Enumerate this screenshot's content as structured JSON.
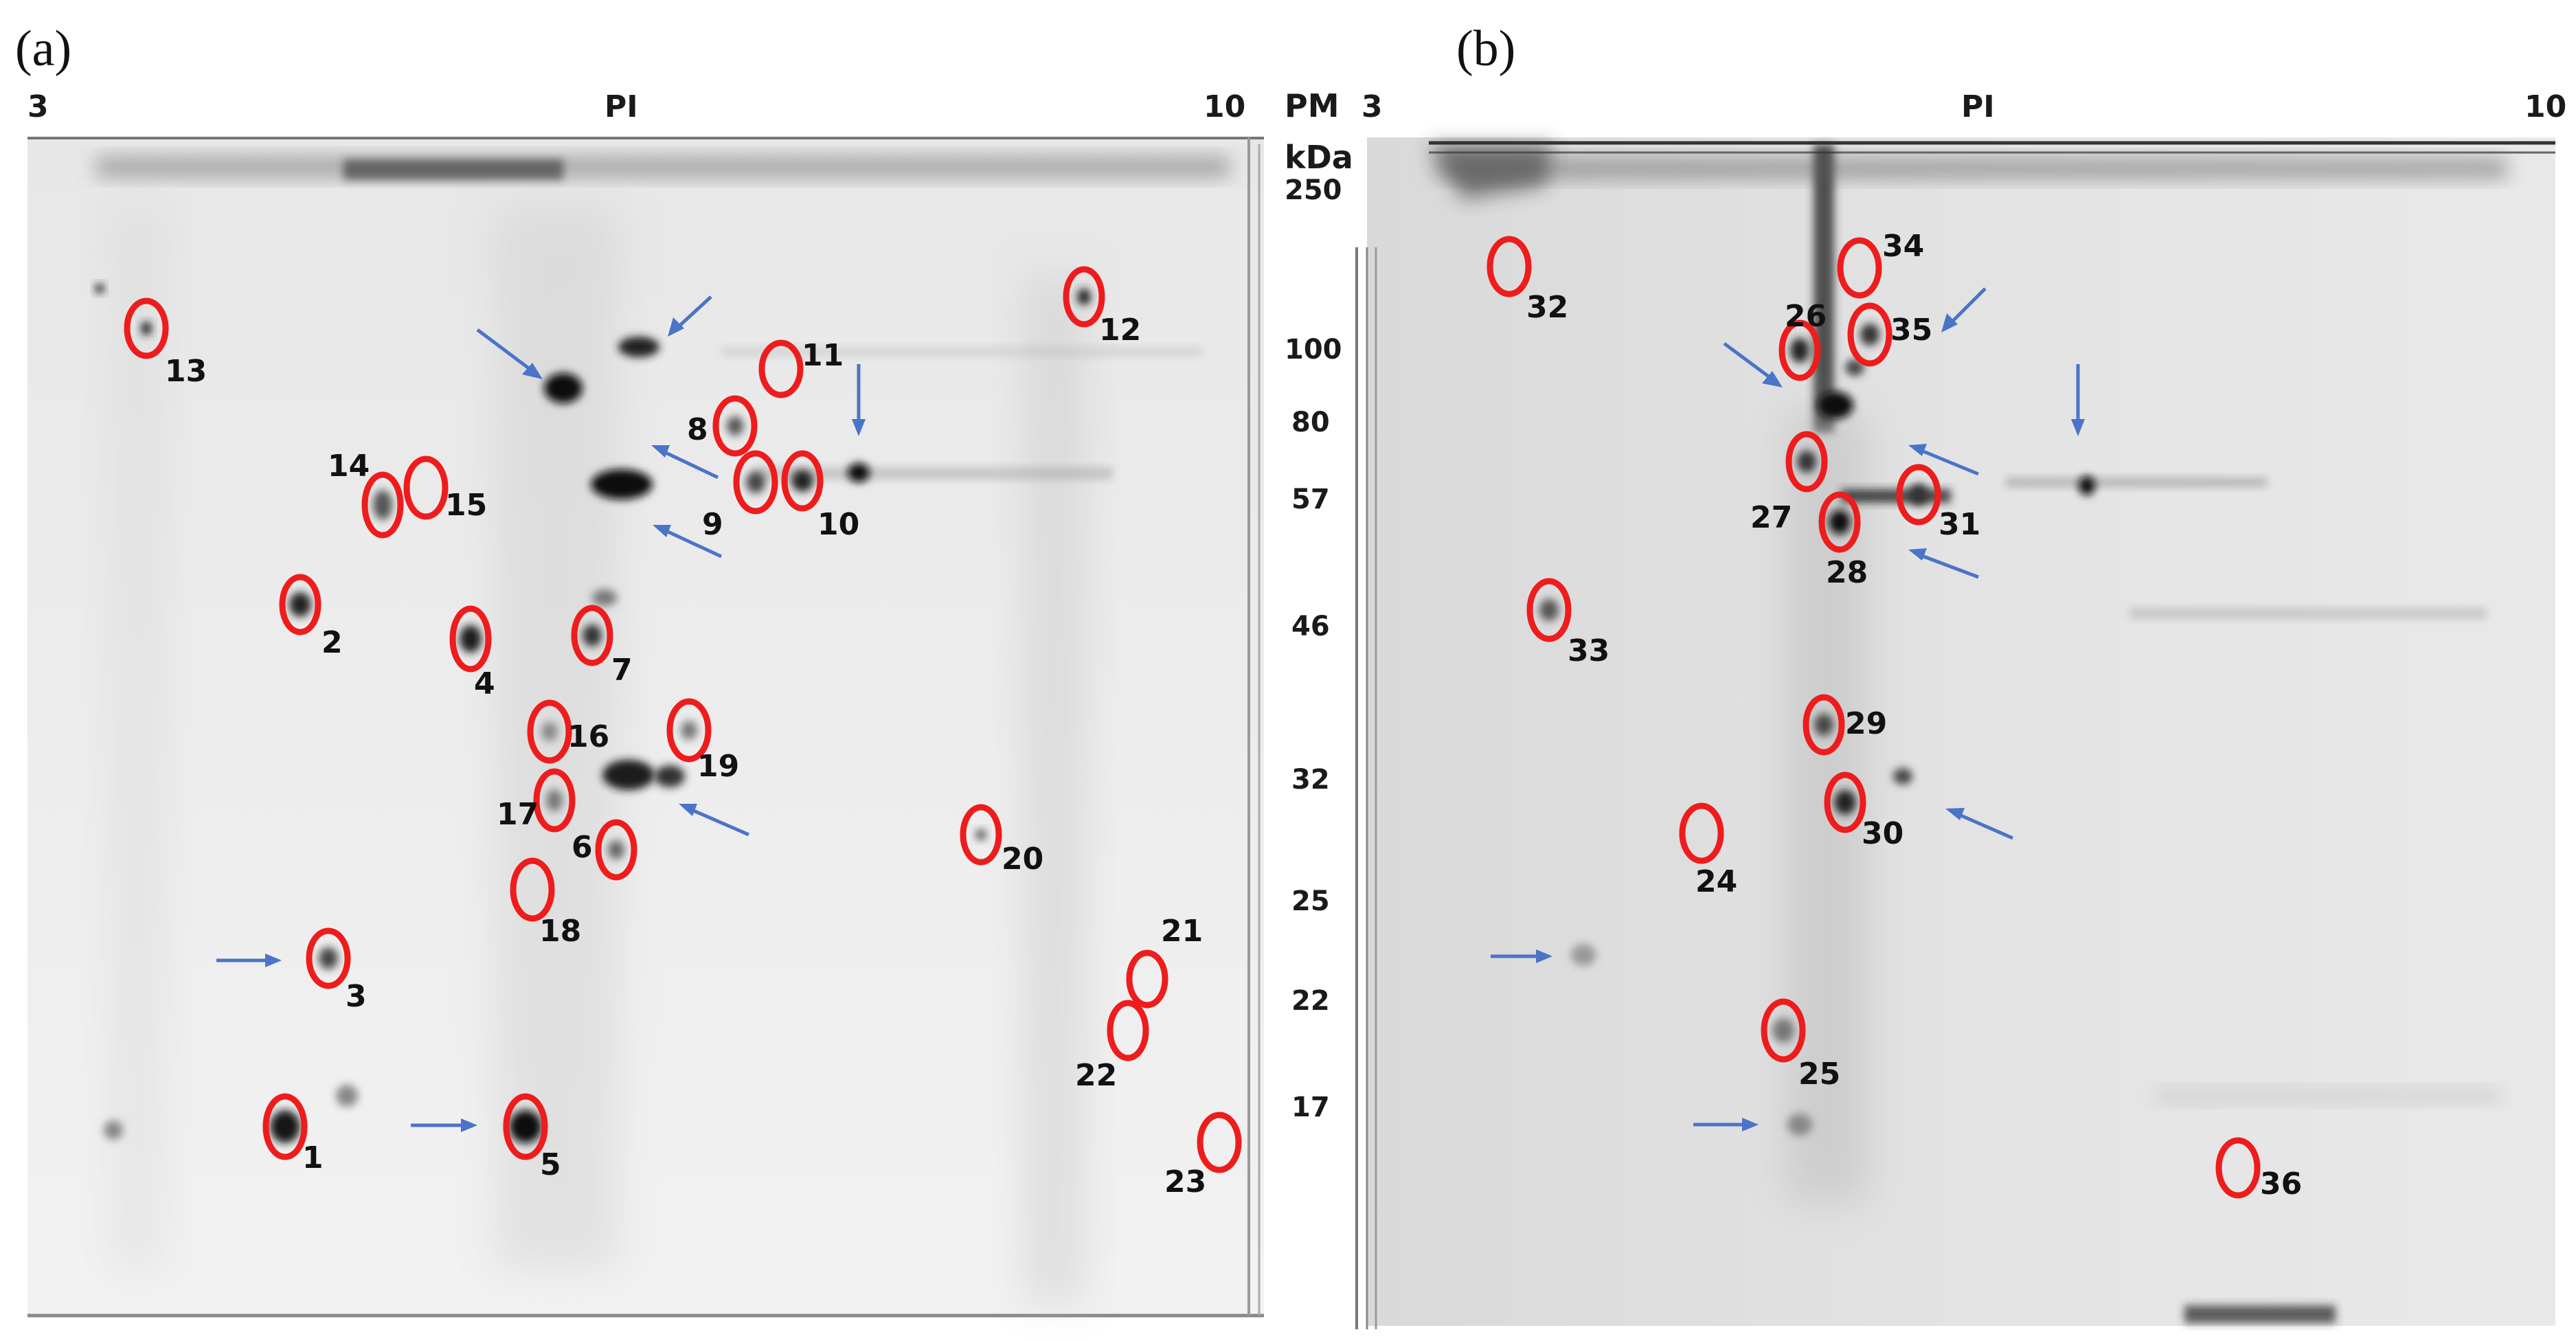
{
  "panels": [
    {
      "id": "a",
      "letter": "(a)",
      "pi_label": "PI",
      "pi_min": "3",
      "pi_max": "10",
      "spots": [
        {
          "n": "1"
        },
        {
          "n": "2"
        },
        {
          "n": "3"
        },
        {
          "n": "4"
        },
        {
          "n": "5"
        },
        {
          "n": "6"
        },
        {
          "n": "7"
        },
        {
          "n": "8"
        },
        {
          "n": "9"
        },
        {
          "n": "10"
        },
        {
          "n": "11"
        },
        {
          "n": "12"
        },
        {
          "n": "13"
        },
        {
          "n": "14"
        },
        {
          "n": "15"
        },
        {
          "n": "16"
        },
        {
          "n": "17"
        },
        {
          "n": "18"
        },
        {
          "n": "19"
        },
        {
          "n": "20"
        },
        {
          "n": "21"
        },
        {
          "n": "22"
        },
        {
          "n": "23"
        }
      ]
    },
    {
      "id": "b",
      "letter": "(b)",
      "pi_label": "PI",
      "pi_min": "3",
      "pi_max": "10",
      "spots": [
        {
          "n": "24"
        },
        {
          "n": "25"
        },
        {
          "n": "26"
        },
        {
          "n": "27"
        },
        {
          "n": "28"
        },
        {
          "n": "29"
        },
        {
          "n": "30"
        },
        {
          "n": "31"
        },
        {
          "n": "32"
        },
        {
          "n": "33"
        },
        {
          "n": "34"
        },
        {
          "n": "35"
        },
        {
          "n": "36"
        }
      ]
    }
  ],
  "marker_ladder": {
    "title": "PM",
    "unit": "kDa",
    "values": [
      "250",
      "100",
      "80",
      "57",
      "46",
      "32",
      "25",
      "22",
      "17"
    ]
  },
  "colors": {
    "circle": "#ee1c1c",
    "arrow": "#4a74c8",
    "gel_background": "#ececec"
  }
}
